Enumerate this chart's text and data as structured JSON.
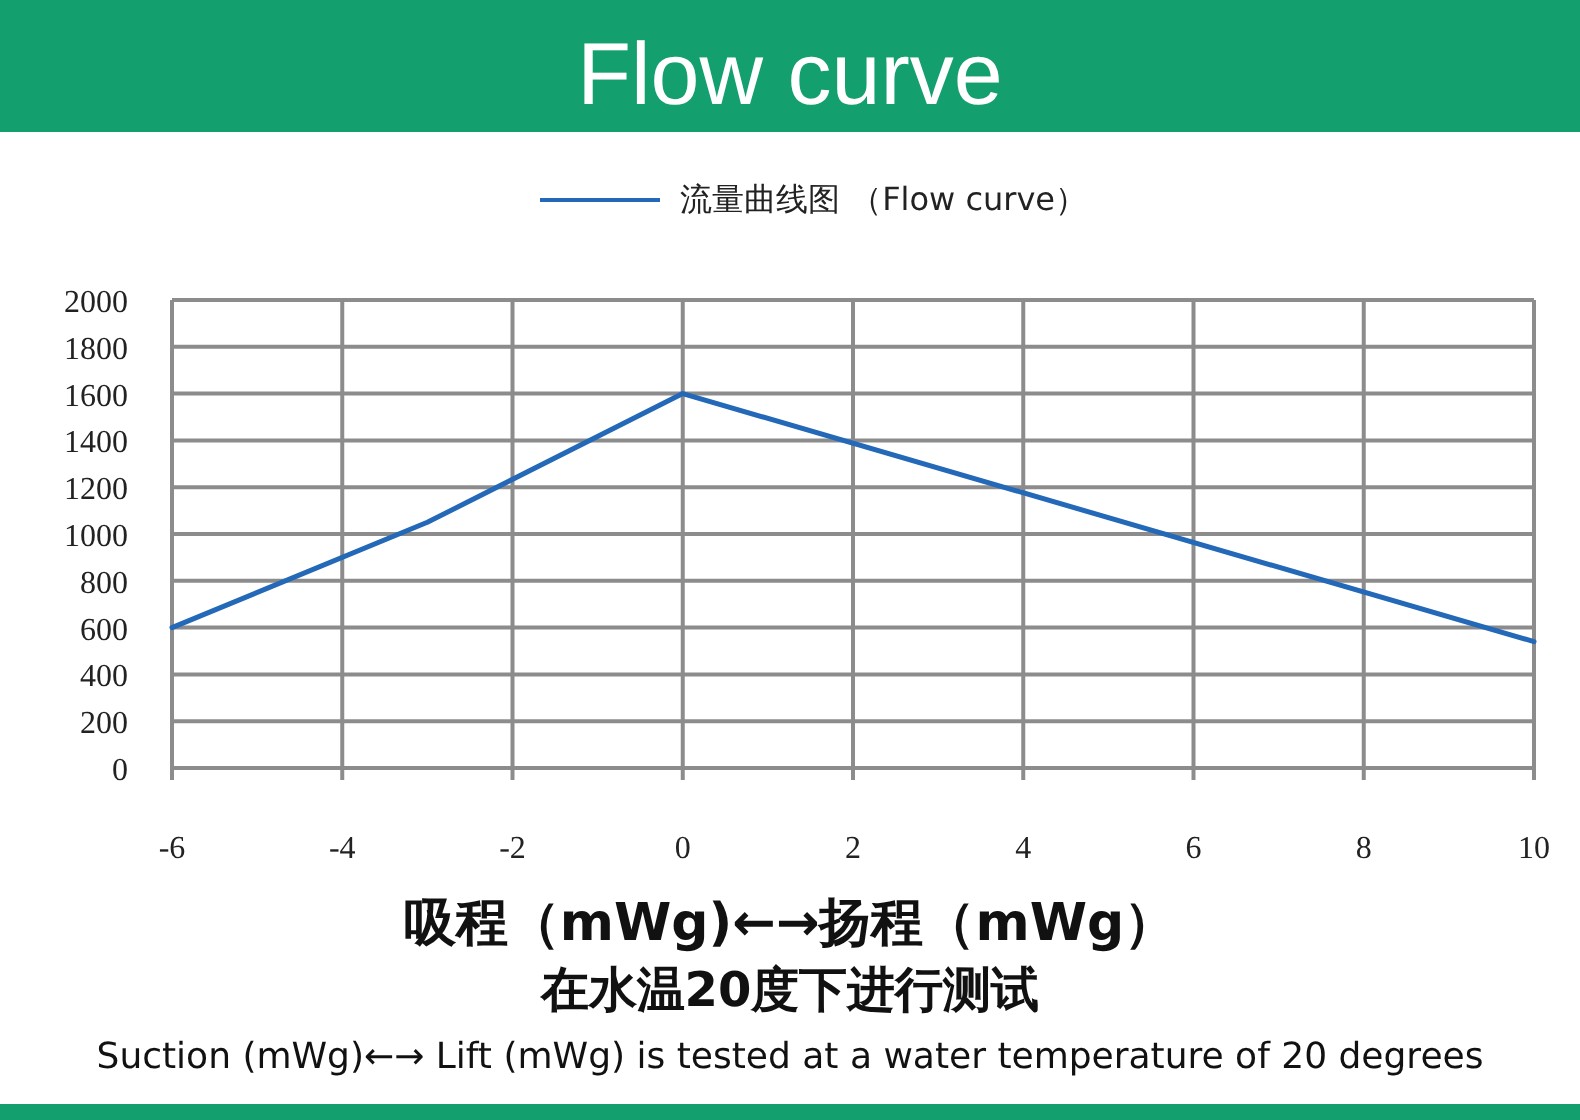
{
  "chart_data": {
    "type": "line",
    "title": "Flow curve",
    "xlabel": "吸程（mWg)←→扬程（mWg）",
    "annotations": [
      "在水温20度下进行测试",
      "Suction (mWg)←→ Lift (mWg) is tested at a water temperature of 20 degrees"
    ],
    "series": [
      {
        "name": "流量曲线图 （Flow curve）",
        "color": "#2468b8",
        "x": [
          -6,
          -3,
          0,
          10
        ],
        "values": [
          600,
          1050,
          1600,
          540
        ]
      }
    ],
    "xlim": [
      -6,
      10
    ],
    "xticks": [
      -6,
      -4,
      -2,
      0,
      2,
      4,
      6,
      8,
      10
    ],
    "ylim": [
      0,
      2000
    ],
    "yticks": [
      0,
      200,
      400,
      600,
      800,
      1000,
      1200,
      1400,
      1600,
      1800,
      2000
    ],
    "grid": true,
    "legend": "top",
    "marker": "none"
  }
}
